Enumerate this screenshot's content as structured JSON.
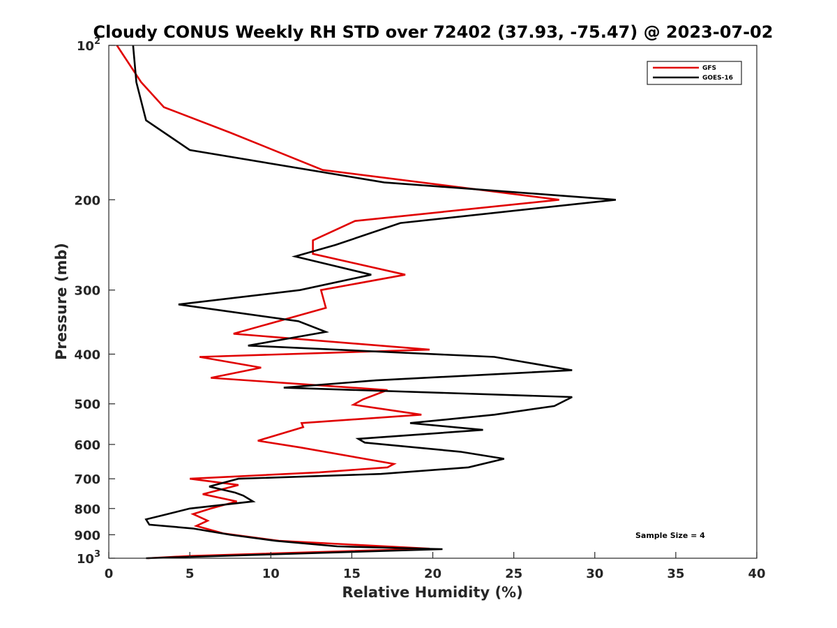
{
  "chart_data": {
    "type": "line",
    "title": "Cloudy CONUS Weekly RH STD over 72402 (37.93, -75.47) @ 2023-07-02",
    "xlabel": "Relative Humidity (%)",
    "ylabel": "Pressure (mb)",
    "xlim": [
      0,
      40
    ],
    "ylim": [
      100,
      1000
    ],
    "y_scale": "log",
    "y_reversed": true,
    "x_ticks": [
      "0",
      "5",
      "10",
      "15",
      "20",
      "25",
      "30",
      "35",
      "40"
    ],
    "y_ticks": [
      {
        "value": 100,
        "base": "10",
        "exp": "2"
      },
      {
        "value": 200,
        "label": "200"
      },
      {
        "value": 300,
        "label": "300"
      },
      {
        "value": 400,
        "label": "400"
      },
      {
        "value": 500,
        "label": "500"
      },
      {
        "value": 600,
        "label": "600"
      },
      {
        "value": 700,
        "label": "700"
      },
      {
        "value": 800,
        "label": "800"
      },
      {
        "value": 900,
        "label": "900"
      },
      {
        "value": 1000,
        "base": "10",
        "exp": "3"
      }
    ],
    "grid": false,
    "legend_position": "top-right",
    "annotation": "Sample Size = 4",
    "series": [
      {
        "name": "GFS",
        "color": "#e00000",
        "points": [
          [
            0.5,
            100
          ],
          [
            2.0,
            118
          ],
          [
            3.4,
            132
          ],
          [
            7.5,
            148
          ],
          [
            13.2,
            175
          ],
          [
            27.8,
            200
          ],
          [
            15.2,
            220
          ],
          [
            12.6,
            240
          ],
          [
            12.6,
            255
          ],
          [
            18.3,
            280
          ],
          [
            13.1,
            300
          ],
          [
            13.4,
            325
          ],
          [
            7.7,
            365
          ],
          [
            19.8,
            392
          ],
          [
            5.6,
            405
          ],
          [
            9.4,
            425
          ],
          [
            6.3,
            445
          ],
          [
            17.2,
            470
          ],
          [
            15.7,
            490
          ],
          [
            15.1,
            502
          ],
          [
            19.3,
            525
          ],
          [
            11.9,
            545
          ],
          [
            12.0,
            555
          ],
          [
            9.2,
            590
          ],
          [
            11.8,
            608
          ],
          [
            17.6,
            655
          ],
          [
            17.2,
            665
          ],
          [
            13.0,
            680
          ],
          [
            5.0,
            700
          ],
          [
            8.0,
            720
          ],
          [
            5.8,
            750
          ],
          [
            7.9,
            775
          ],
          [
            6.3,
            800
          ],
          [
            5.2,
            820
          ],
          [
            6.1,
            845
          ],
          [
            5.4,
            865
          ],
          [
            7.1,
            895
          ],
          [
            10.5,
            925
          ],
          [
            19.8,
            958
          ],
          [
            5.0,
            990
          ],
          [
            2.4,
            1000
          ]
        ]
      },
      {
        "name": "GOES-16",
        "color": "#000000",
        "points": [
          [
            1.5,
            100
          ],
          [
            1.7,
            118
          ],
          [
            2.3,
            140
          ],
          [
            5.0,
            160
          ],
          [
            17.0,
            185
          ],
          [
            31.3,
            200
          ],
          [
            18.0,
            222
          ],
          [
            14.0,
            245
          ],
          [
            11.5,
            258
          ],
          [
            16.2,
            280
          ],
          [
            11.8,
            300
          ],
          [
            4.3,
            320
          ],
          [
            11.7,
            345
          ],
          [
            13.4,
            362
          ],
          [
            8.6,
            385
          ],
          [
            23.8,
            405
          ],
          [
            28.6,
            430
          ],
          [
            16.5,
            450
          ],
          [
            10.8,
            465
          ],
          [
            28.6,
            485
          ],
          [
            27.5,
            505
          ],
          [
            23.8,
            525
          ],
          [
            18.6,
            545
          ],
          [
            23.1,
            562
          ],
          [
            15.4,
            585
          ],
          [
            15.8,
            595
          ],
          [
            21.7,
            620
          ],
          [
            24.4,
            640
          ],
          [
            22.2,
            665
          ],
          [
            16.8,
            685
          ],
          [
            8.0,
            700
          ],
          [
            6.2,
            725
          ],
          [
            7.8,
            745
          ],
          [
            8.3,
            755
          ],
          [
            8.9,
            775
          ],
          [
            5.0,
            800
          ],
          [
            3.3,
            825
          ],
          [
            2.3,
            840
          ],
          [
            2.5,
            860
          ],
          [
            5.2,
            875
          ],
          [
            7.5,
            900
          ],
          [
            10.3,
            925
          ],
          [
            14.1,
            948
          ],
          [
            20.6,
            960
          ],
          [
            2.3,
            1000
          ]
        ]
      }
    ]
  }
}
